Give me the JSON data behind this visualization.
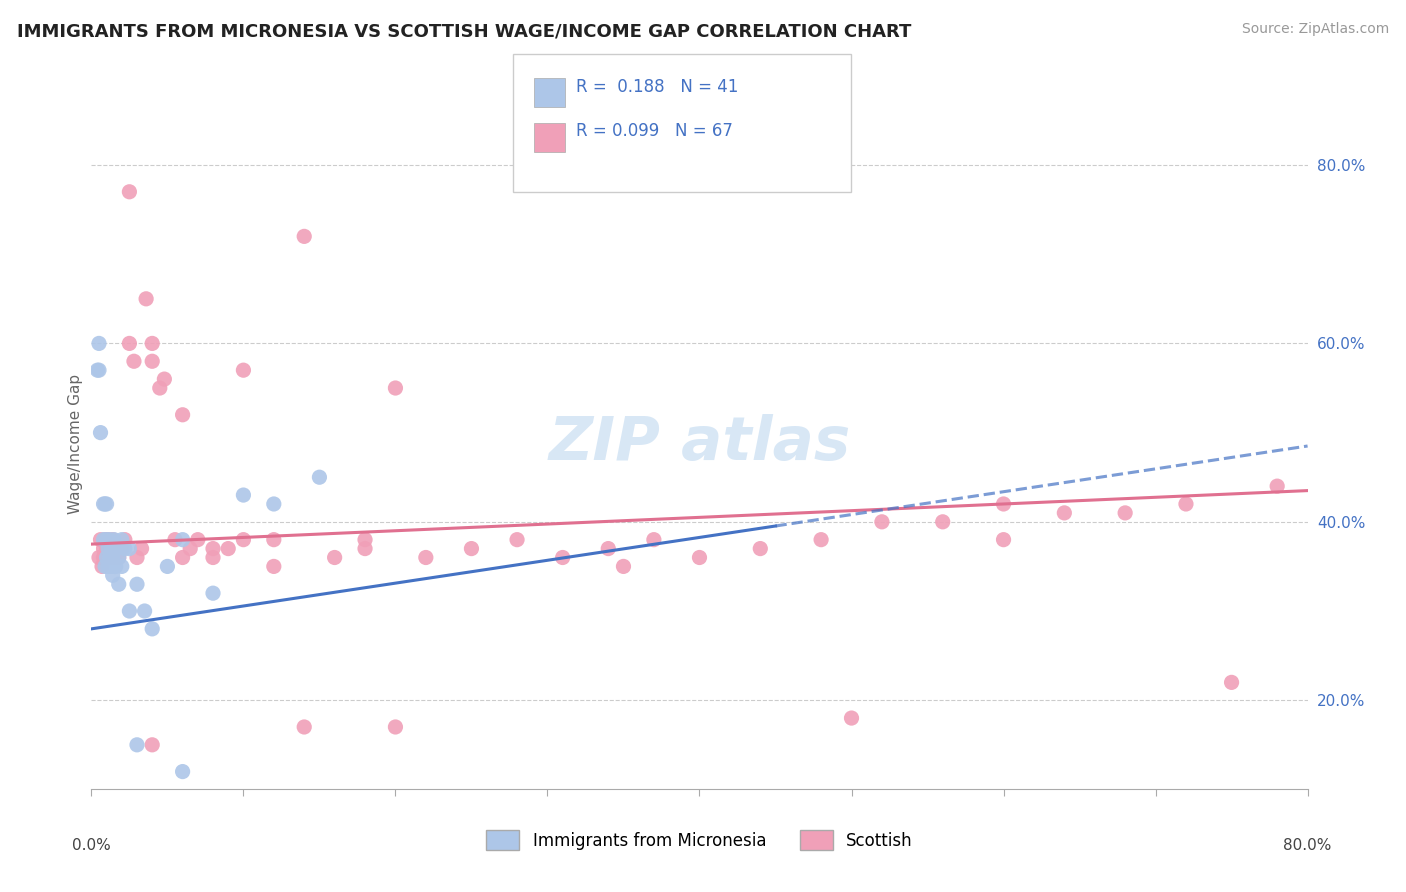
{
  "title": "IMMIGRANTS FROM MICRONESIA VS SCOTTISH WAGE/INCOME GAP CORRELATION CHART",
  "source": "Source: ZipAtlas.com",
  "legend_blue_label": "Immigrants from Micronesia",
  "legend_pink_label": "Scottish",
  "legend_R_blue": "R =  0.188",
  "legend_N_blue": "N = 41",
  "legend_R_pink": "R = 0.099",
  "legend_N_pink": "N = 67",
  "blue_color": "#adc6e8",
  "pink_color": "#f0a0b8",
  "blue_line_color": "#4472c4",
  "pink_line_color": "#e07090",
  "ylabel": "Wage/Income Gap",
  "ylabel_right_ticks": [
    "20.0%",
    "40.0%",
    "60.0%",
    "80.0%"
  ],
  "ylabel_right_vals": [
    0.2,
    0.4,
    0.6,
    0.8
  ],
  "xmin": 0.0,
  "xmax": 0.8,
  "ymin": 0.1,
  "ymax": 0.875,
  "blue_line_x0": 0.0,
  "blue_line_y0": 0.28,
  "blue_line_x1": 0.8,
  "blue_line_y1": 0.485,
  "pink_line_x0": 0.0,
  "pink_line_y0": 0.375,
  "pink_line_x1": 0.8,
  "pink_line_y1": 0.435,
  "blue_scatter_x": [
    0.004,
    0.005,
    0.005,
    0.006,
    0.008,
    0.008,
    0.009,
    0.009,
    0.01,
    0.01,
    0.01,
    0.011,
    0.011,
    0.012,
    0.012,
    0.013,
    0.013,
    0.014,
    0.014,
    0.015,
    0.015,
    0.016,
    0.016,
    0.018,
    0.018,
    0.02,
    0.02,
    0.022,
    0.025,
    0.025,
    0.03,
    0.035,
    0.04,
    0.05,
    0.06,
    0.08,
    0.1,
    0.12,
    0.15,
    0.03,
    0.06
  ],
  "blue_scatter_y": [
    0.57,
    0.6,
    0.57,
    0.5,
    0.42,
    0.38,
    0.42,
    0.35,
    0.42,
    0.38,
    0.36,
    0.35,
    0.37,
    0.36,
    0.38,
    0.37,
    0.35,
    0.36,
    0.34,
    0.38,
    0.35,
    0.37,
    0.35,
    0.36,
    0.33,
    0.38,
    0.35,
    0.37,
    0.37,
    0.3,
    0.33,
    0.3,
    0.28,
    0.35,
    0.38,
    0.32,
    0.43,
    0.42,
    0.45,
    0.15,
    0.12
  ],
  "pink_scatter_x": [
    0.005,
    0.006,
    0.007,
    0.008,
    0.008,
    0.009,
    0.01,
    0.01,
    0.011,
    0.012,
    0.013,
    0.014,
    0.015,
    0.016,
    0.018,
    0.02,
    0.022,
    0.025,
    0.028,
    0.03,
    0.033,
    0.036,
    0.04,
    0.04,
    0.045,
    0.048,
    0.055,
    0.06,
    0.065,
    0.07,
    0.08,
    0.09,
    0.1,
    0.12,
    0.14,
    0.16,
    0.18,
    0.2,
    0.22,
    0.25,
    0.28,
    0.31,
    0.34,
    0.37,
    0.4,
    0.44,
    0.48,
    0.52,
    0.56,
    0.6,
    0.64,
    0.68,
    0.72,
    0.14,
    0.2,
    0.35,
    0.5,
    0.04,
    0.025,
    0.06,
    0.1,
    0.18,
    0.08,
    0.12,
    0.75,
    0.6,
    0.78
  ],
  "pink_scatter_y": [
    0.36,
    0.38,
    0.35,
    0.37,
    0.36,
    0.38,
    0.37,
    0.36,
    0.38,
    0.36,
    0.37,
    0.38,
    0.36,
    0.37,
    0.36,
    0.37,
    0.38,
    0.6,
    0.58,
    0.36,
    0.37,
    0.65,
    0.6,
    0.58,
    0.55,
    0.56,
    0.38,
    0.36,
    0.37,
    0.38,
    0.36,
    0.37,
    0.38,
    0.35,
    0.17,
    0.36,
    0.38,
    0.17,
    0.36,
    0.37,
    0.38,
    0.36,
    0.37,
    0.38,
    0.36,
    0.37,
    0.38,
    0.4,
    0.4,
    0.38,
    0.41,
    0.41,
    0.42,
    0.72,
    0.55,
    0.35,
    0.18,
    0.15,
    0.77,
    0.52,
    0.57,
    0.37,
    0.37,
    0.38,
    0.22,
    0.42,
    0.44
  ]
}
